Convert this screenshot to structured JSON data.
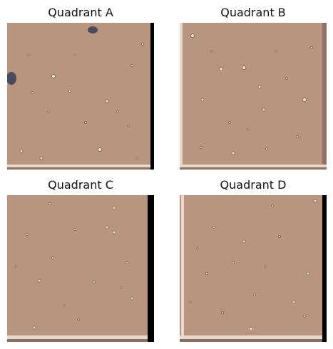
{
  "figure": {
    "panels": [
      {
        "id": "a",
        "title": "Quadrant A"
      },
      {
        "id": "b",
        "title": "Quadrant B"
      },
      {
        "id": "c",
        "title": "Quadrant C"
      },
      {
        "id": "d",
        "title": "Quadrant D"
      }
    ],
    "colors": {
      "background_tissue": "#b9957f",
      "edge_light": "#e8d9cf",
      "edge_dark": "#000000",
      "particle_light": "#efe6c8",
      "particle_dark": "#6a5444",
      "debris": "#4a4a5a"
    }
  }
}
